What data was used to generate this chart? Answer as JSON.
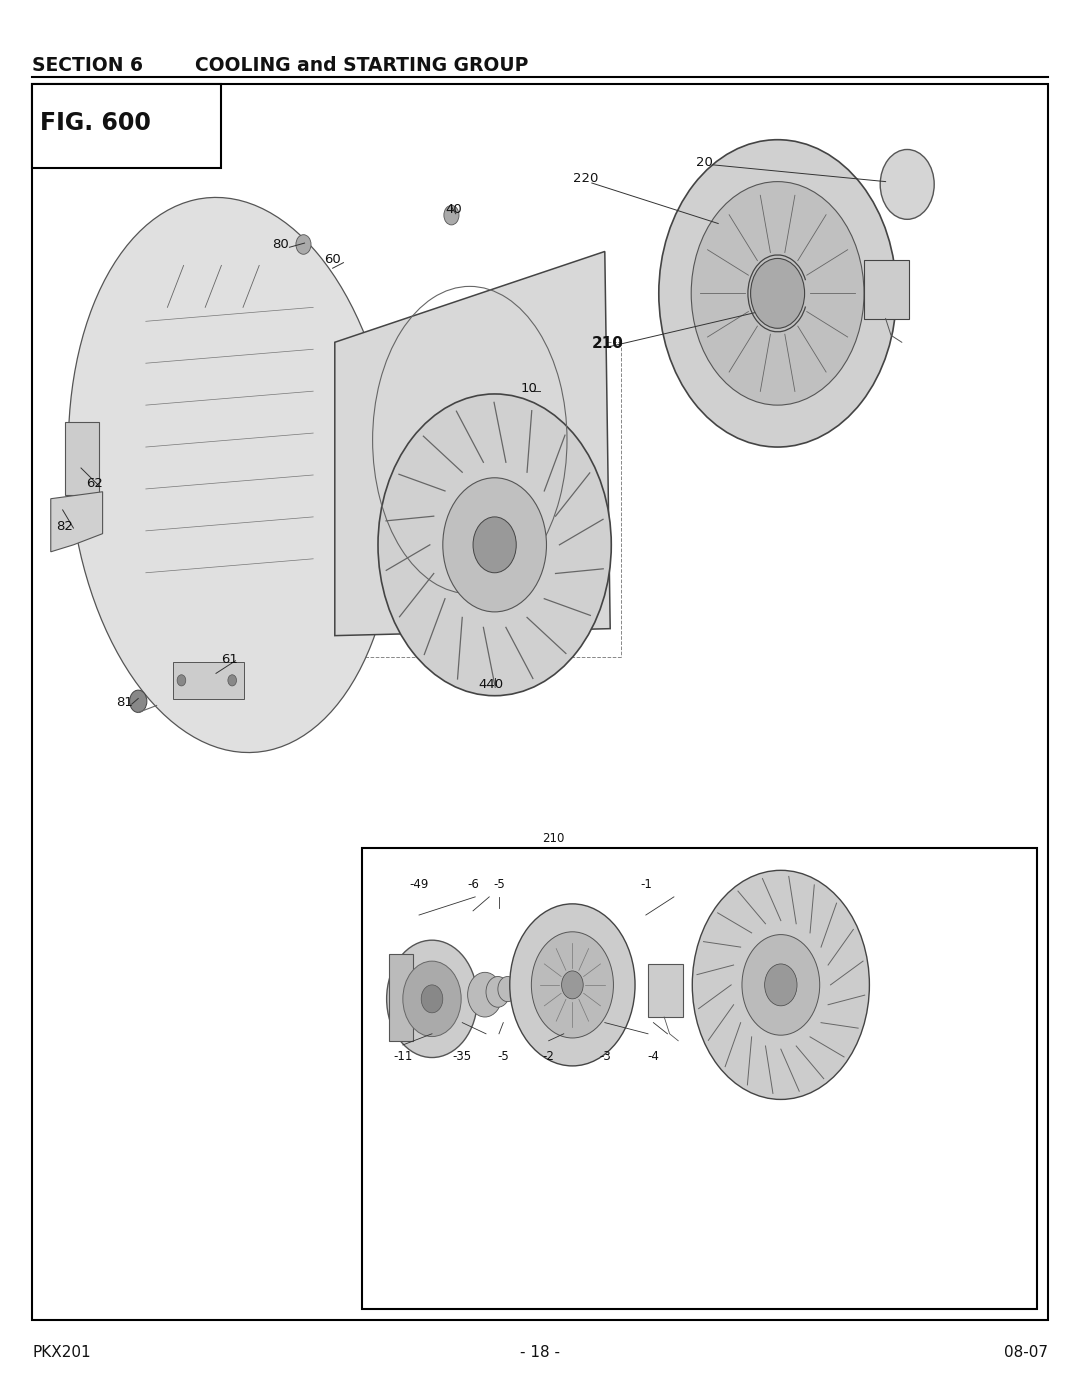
{
  "page_width": 10.8,
  "page_height": 13.97,
  "bg_color": "#ffffff",
  "title_text": "SECTION 6        COOLING and STARTING GROUP",
  "fig_label": "FIG. 600",
  "footer_left": "PKX201",
  "footer_center": "- 18 -",
  "footer_right": "08-07"
}
